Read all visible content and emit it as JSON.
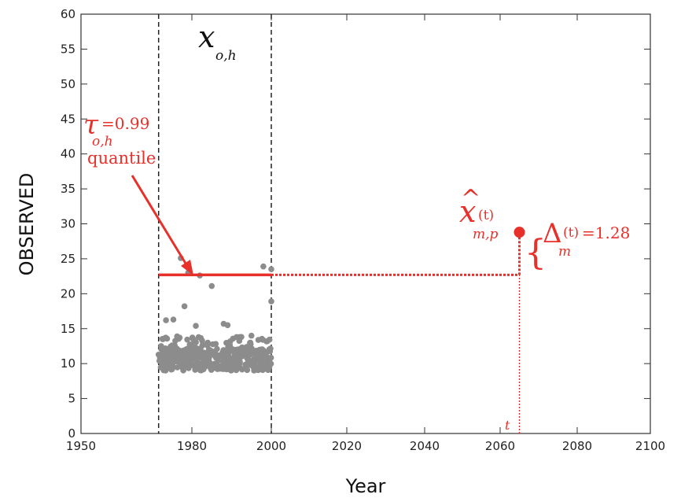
{
  "chart_data": {
    "type": "scatter",
    "xlabel": "Year",
    "ylabel": "OBSERVED",
    "xlim": [
      1950,
      2100
    ],
    "ylim": [
      0,
      60
    ],
    "x_ticks": [
      "1950",
      "1980",
      "2000",
      "2020",
      "2040",
      "2060",
      "2080",
      "2100"
    ],
    "x_tick_values": [
      1950,
      1980,
      2000,
      2020,
      2040,
      2060,
      2080,
      2100
    ],
    "y_ticks": [
      "0",
      "5",
      "10",
      "15",
      "20",
      "25",
      "30",
      "35",
      "40",
      "45",
      "50",
      "55",
      "60"
    ],
    "y_tick_values": [
      0,
      5,
      10,
      15,
      20,
      25,
      30,
      35,
      40,
      45,
      50,
      55,
      60
    ],
    "historical_period": [
      1971,
      2000
    ],
    "quantile_level": 22.7,
    "projection_year": 2065,
    "projection_value": 28.8,
    "annotations": {
      "x_oh_main": "x",
      "x_oh_sub": "o,h",
      "tau_symbol": "τ",
      "tau_value": "=0.99",
      "tau_sub": "o,h",
      "tau_word": "quantile",
      "xhat_hat": "^",
      "xhat_main": "x",
      "xhat_t": "(t)",
      "xhat_sub": "m,p",
      "delta_brace": "{",
      "delta_symbol": "Δ",
      "delta_t": "(t)",
      "delta_value": "=1.28",
      "delta_sub": "m",
      "t_label": "t"
    },
    "colors": {
      "points": "#8c8c8c",
      "annotation": "#e8302a",
      "axis": "#333333"
    }
  }
}
